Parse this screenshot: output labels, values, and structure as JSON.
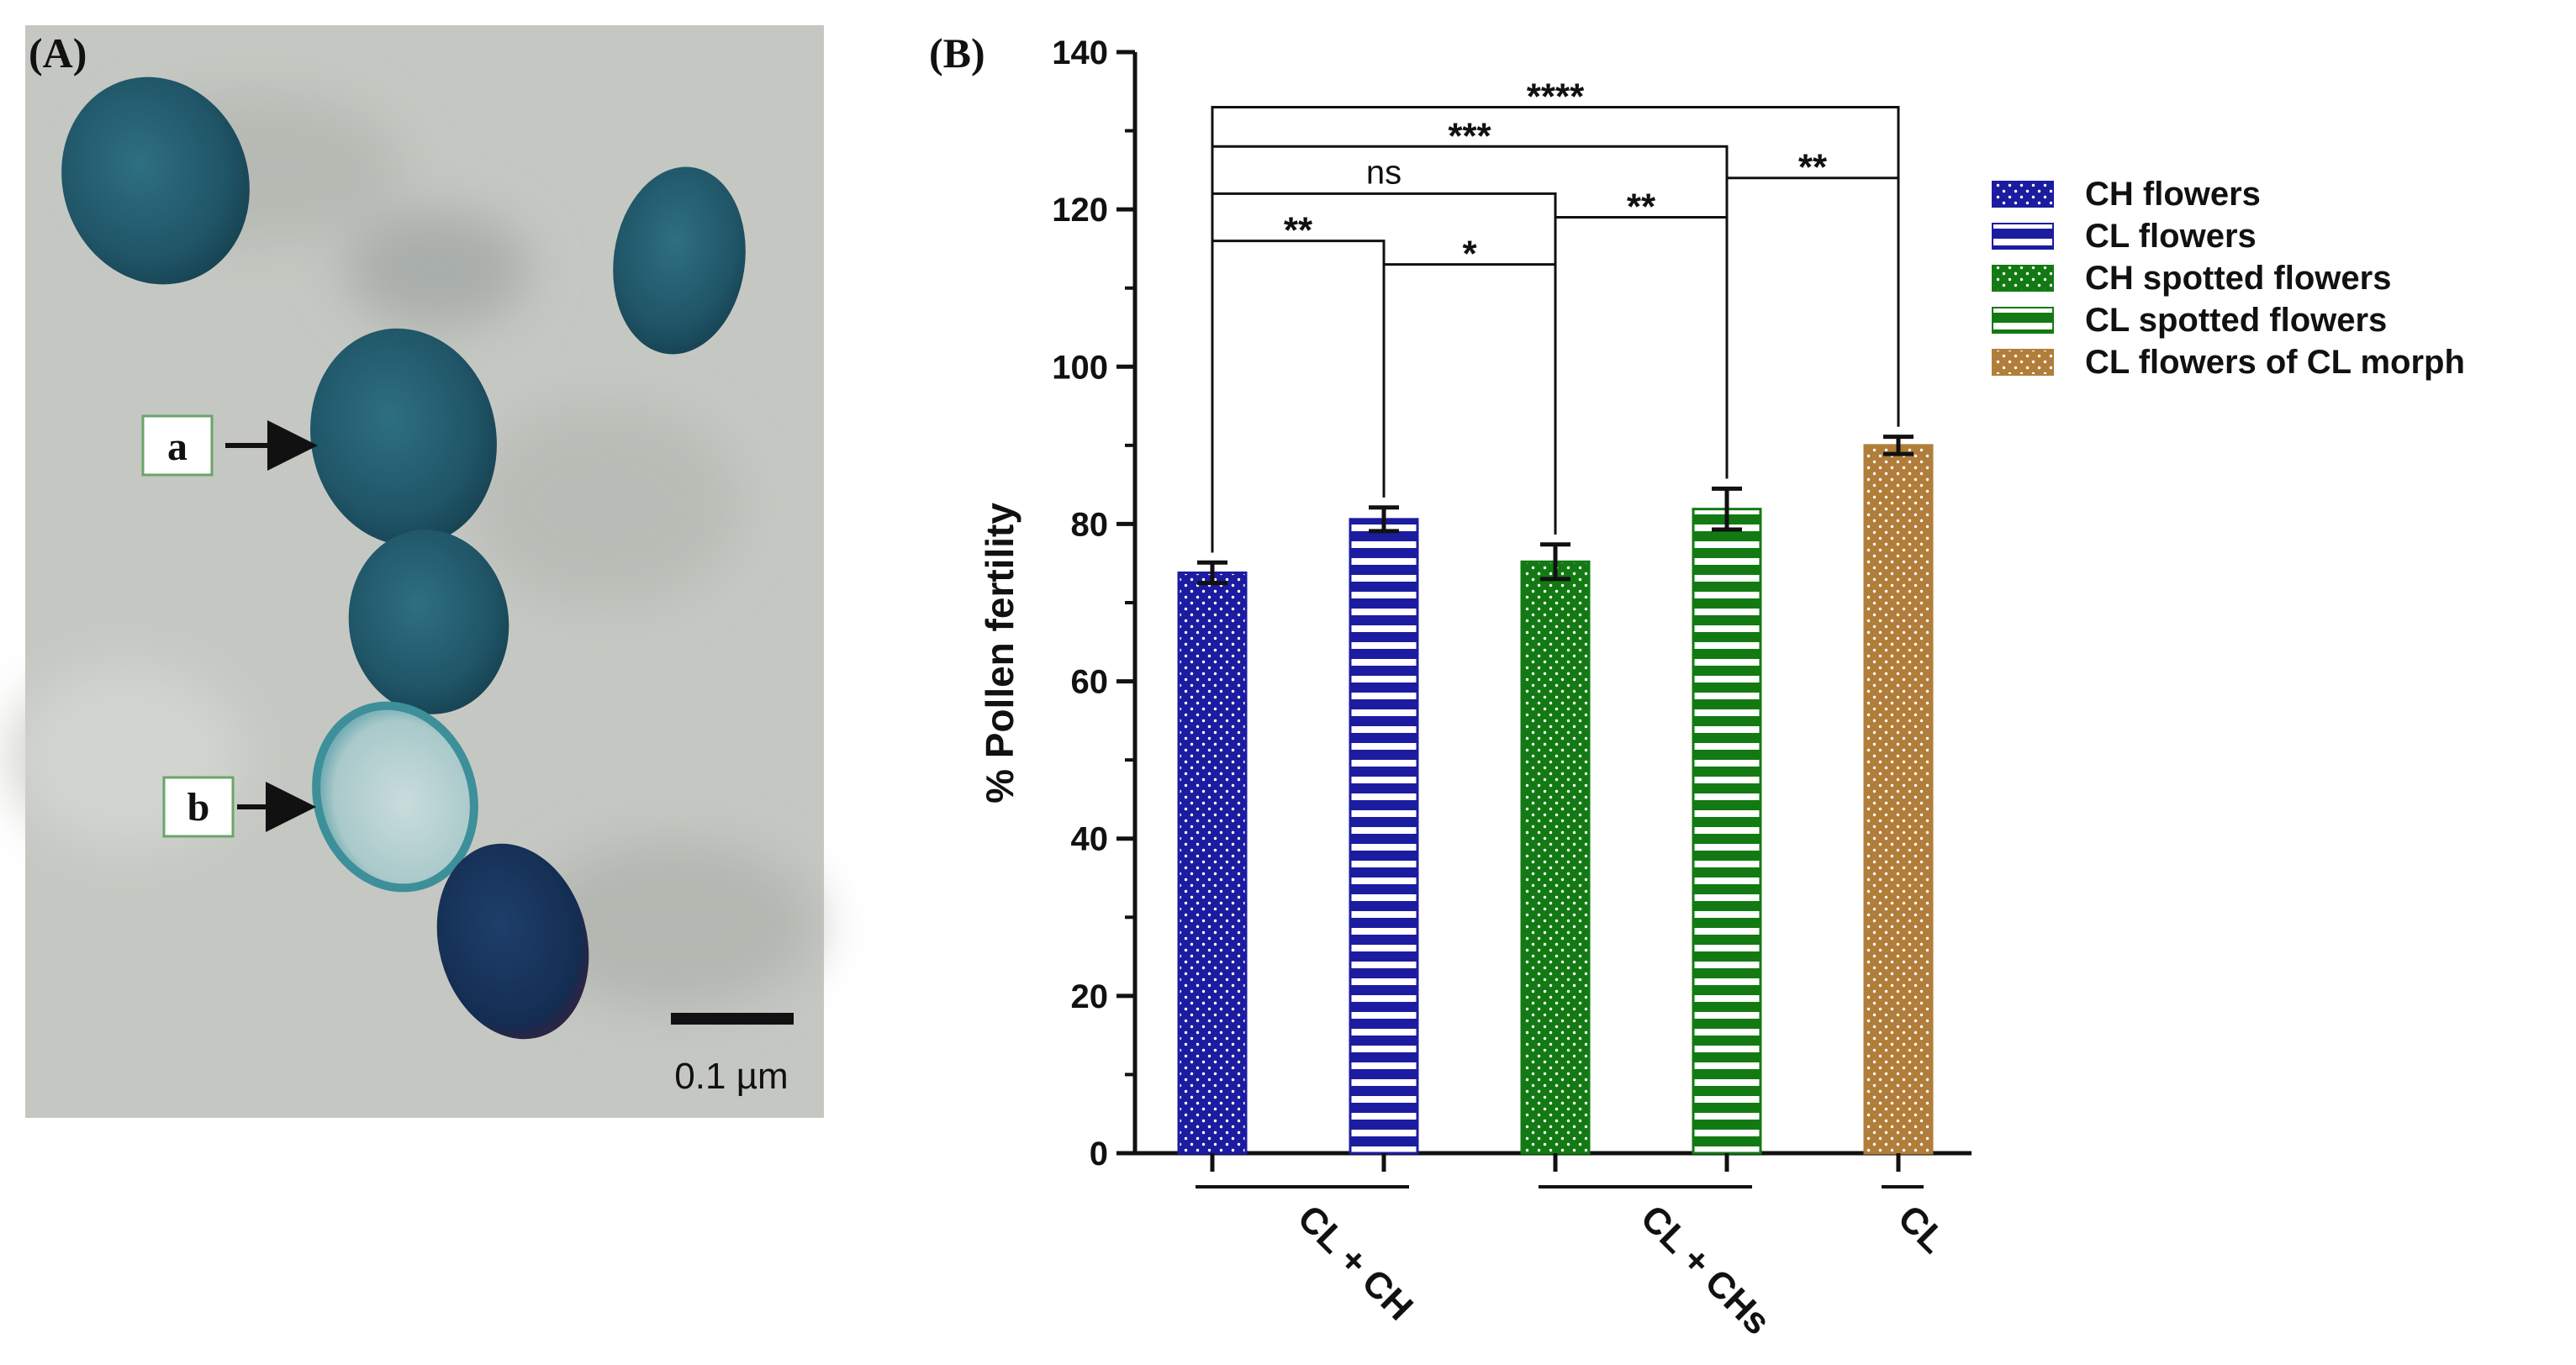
{
  "panels": {
    "a_label": "(A)",
    "b_label": "(B)"
  },
  "micrograph": {
    "label_a": "a",
    "label_b": "b",
    "scale_bar": "0.1 µm"
  },
  "chart_data": {
    "type": "bar",
    "title": "",
    "ylabel": "% Pollen fertility",
    "xlabel": "",
    "ylim": [
      0,
      140
    ],
    "yticks": [
      0,
      20,
      40,
      60,
      80,
      100,
      120,
      140
    ],
    "grid": false,
    "legend_position": "right",
    "categories": [
      "CH flowers",
      "CL flowers",
      "CH spotted flowers",
      "CL spotted flowers",
      "CL flowers of CL morph"
    ],
    "values": [
      73.8,
      80.6,
      75.2,
      81.9,
      90.0
    ],
    "errors": [
      1.3,
      1.5,
      2.2,
      2.6,
      1.1
    ],
    "colors": [
      "#1c1ca0",
      "#1c1ca0",
      "#137a13",
      "#137a13",
      "#b07e3a"
    ],
    "patterns": [
      "dots",
      "stripes",
      "dots",
      "stripes",
      "dots"
    ],
    "groups": [
      {
        "label": "CL + CH",
        "members": [
          0,
          1
        ]
      },
      {
        "label": "CL + CHs",
        "members": [
          2,
          3
        ]
      },
      {
        "label": "CL",
        "members": [
          4
        ]
      }
    ],
    "significance": [
      {
        "from": 0,
        "to": 1,
        "y": 116,
        "label": "**"
      },
      {
        "from": 1,
        "to": 2,
        "y": 113,
        "label": "*"
      },
      {
        "from": 0,
        "to": 2,
        "y": 122,
        "label": "ns"
      },
      {
        "from": 2,
        "to": 3,
        "y": 119,
        "label": "**"
      },
      {
        "from": 3,
        "to": 4,
        "y": 124,
        "label": "**"
      },
      {
        "from": 0,
        "to": 3,
        "y": 128,
        "label": "***"
      },
      {
        "from": 0,
        "to": 4,
        "y": 133,
        "label": "****"
      }
    ]
  }
}
